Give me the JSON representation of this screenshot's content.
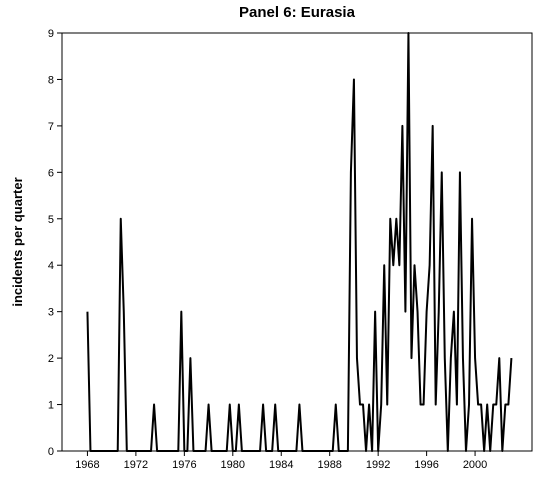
{
  "chart_data": {
    "type": "line",
    "title": "Panel 6: Eurasia",
    "y_label": "incidents per quarter",
    "x": [
      1968,
      1968.25,
      1968.5,
      1968.75,
      1969,
      1969.25,
      1969.5,
      1969.75,
      1970,
      1970.25,
      1970.5,
      1970.75,
      1971,
      1971.25,
      1971.5,
      1971.75,
      1972,
      1972.25,
      1972.5,
      1972.75,
      1973,
      1973.25,
      1973.5,
      1973.75,
      1974,
      1974.25,
      1974.5,
      1974.75,
      1975,
      1975.25,
      1975.5,
      1975.75,
      1976,
      1976.25,
      1976.5,
      1976.75,
      1977,
      1977.25,
      1977.5,
      1977.75,
      1978,
      1978.25,
      1978.5,
      1978.75,
      1979,
      1979.25,
      1979.5,
      1979.75,
      1980,
      1980.25,
      1980.5,
      1980.75,
      1981,
      1981.25,
      1981.5,
      1981.75,
      1982,
      1982.25,
      1982.5,
      1982.75,
      1983,
      1983.25,
      1983.5,
      1983.75,
      1984,
      1984.25,
      1984.5,
      1984.75,
      1985,
      1985.25,
      1985.5,
      1985.75,
      1986,
      1986.25,
      1986.5,
      1986.75,
      1987,
      1987.25,
      1987.5,
      1987.75,
      1988,
      1988.25,
      1988.5,
      1988.75,
      1989,
      1989.25,
      1989.5,
      1989.75,
      1990,
      1990.25,
      1990.5,
      1990.75,
      1991,
      1991.25,
      1991.5,
      1991.75,
      1992,
      1992.25,
      1992.5,
      1992.75,
      1993,
      1993.25,
      1993.5,
      1993.75,
      1994,
      1994.25,
      1994.5,
      1994.75,
      1995,
      1995.25,
      1995.5,
      1995.75,
      1996,
      1996.25,
      1996.5,
      1996.75,
      1997,
      1997.25,
      1997.5,
      1997.75,
      1998,
      1998.25,
      1998.5,
      1998.75,
      1999,
      1999.25,
      1999.5,
      1999.75,
      2000,
      2000.25,
      2000.5,
      2000.75,
      2001,
      2001.25,
      2001.5,
      2001.75,
      2002,
      2002.25,
      2002.5,
      2002.75,
      2003
    ],
    "series": [
      {
        "color": "#000000",
        "values": [
          3,
          0,
          0,
          0,
          0,
          0,
          0,
          0,
          0,
          0,
          0,
          5,
          3,
          0,
          0,
          0,
          0,
          0,
          0,
          0,
          0,
          0,
          1,
          0,
          0,
          0,
          0,
          0,
          0,
          0,
          0,
          3,
          0,
          0,
          2,
          0,
          0,
          0,
          0,
          0,
          1,
          0,
          0,
          0,
          0,
          0,
          0,
          1,
          0,
          0,
          1,
          0,
          0,
          0,
          0,
          0,
          0,
          0,
          1,
          0,
          0,
          0,
          1,
          0,
          0,
          0,
          0,
          0,
          0,
          0,
          1,
          0,
          0,
          0,
          0,
          0,
          0,
          0,
          0,
          0,
          0,
          0,
          1,
          0,
          0,
          0,
          0,
          6,
          8,
          2,
          1,
          1,
          0,
          1,
          0,
          3,
          0,
          1,
          4,
          1,
          5,
          4,
          5,
          4,
          7,
          3,
          9,
          2,
          4,
          3,
          1,
          1,
          3,
          4,
          7,
          1,
          3,
          6,
          2,
          0,
          2,
          3,
          1,
          6,
          2,
          0,
          1,
          5,
          2,
          1,
          1,
          0,
          1,
          0,
          1,
          1,
          2,
          0,
          1,
          1,
          2
        ]
      }
    ],
    "xlim": [
      1965.9,
      2004.7
    ],
    "xticks": [
      1968,
      1972,
      1976,
      1980,
      1984,
      1988,
      1992,
      1996,
      2000
    ],
    "ylim": [
      0,
      9
    ],
    "yticks": [
      0,
      1,
      2,
      3,
      4,
      5,
      6,
      7,
      8,
      9
    ]
  }
}
